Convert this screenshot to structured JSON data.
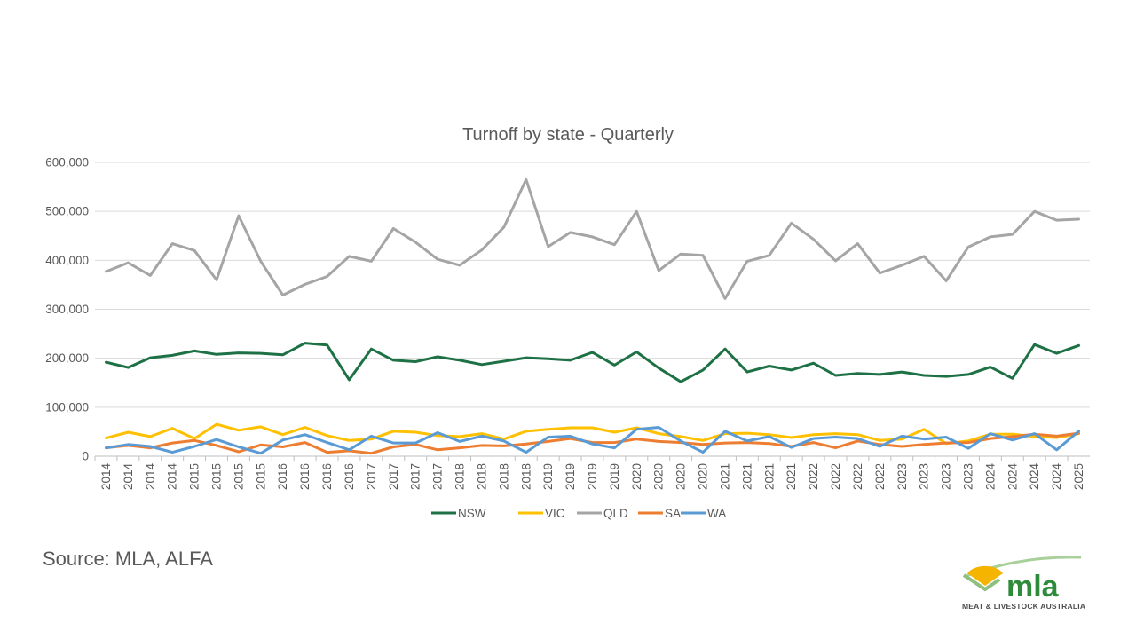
{
  "source_text": "Source: MLA, ALFA",
  "logo": {
    "wordmark": "mla",
    "tagline": "MEAT & LIVESTOCK AUSTRALIA"
  },
  "colors": {
    "NSW": "#1e7145",
    "VIC": "#ffc000",
    "QLD": "#a5a5a5",
    "SA": "#ed7d31",
    "WA": "#5b9bd5",
    "grid": "#d9d9d9",
    "text": "#595959",
    "logo_green": "#2e8b3a",
    "logo_gold": "#f4b400"
  },
  "chart_data": {
    "type": "line",
    "title": "Turnoff by state - Quarterly",
    "xlabel": "",
    "ylabel": "",
    "ylim": [
      0,
      600000
    ],
    "yticks": [
      0,
      100000,
      200000,
      300000,
      400000,
      500000,
      600000
    ],
    "ytick_labels": [
      "0",
      "100,000",
      "200,000",
      "300,000",
      "400,000",
      "500,000",
      "600,000"
    ],
    "grid": true,
    "legend_position": "bottom",
    "categories": [
      "2014",
      "2014",
      "2014",
      "2014",
      "2015",
      "2015",
      "2015",
      "2015",
      "2016",
      "2016",
      "2016",
      "2016",
      "2017",
      "2017",
      "2017",
      "2017",
      "2018",
      "2018",
      "2018",
      "2018",
      "2019",
      "2019",
      "2019",
      "2019",
      "2020",
      "2020",
      "2020",
      "2020",
      "2021",
      "2021",
      "2021",
      "2021",
      "2022",
      "2022",
      "2022",
      "2022",
      "2023",
      "2023",
      "2023",
      "2023",
      "2024",
      "2024",
      "2024",
      "2024",
      "2025"
    ],
    "series": [
      {
        "name": "NSW",
        "values": [
          192000,
          181000,
          201000,
          206000,
          215000,
          208000,
          211000,
          210000,
          207000,
          231000,
          227000,
          156000,
          219000,
          196000,
          193000,
          203000,
          196000,
          187000,
          194000,
          201000,
          199000,
          196000,
          212000,
          186000,
          213000,
          180000,
          152000,
          176000,
          219000,
          172000,
          184000,
          176000,
          190000,
          165000,
          169000,
          167000,
          172000,
          165000,
          163000,
          167000,
          182000,
          159000,
          228000,
          210000,
          226000
        ]
      },
      {
        "name": "VIC",
        "values": [
          37000,
          49000,
          40000,
          57000,
          36000,
          65000,
          53000,
          60000,
          44000,
          59000,
          42000,
          32000,
          35000,
          51000,
          49000,
          42000,
          40000,
          46000,
          35000,
          51000,
          55000,
          58000,
          58000,
          49000,
          58000,
          46000,
          40000,
          32000,
          46000,
          47000,
          44000,
          38000,
          44000,
          46000,
          44000,
          32000,
          35000,
          55000,
          26000,
          31000,
          45000,
          45000,
          40000,
          38000,
          46000
        ]
      },
      {
        "name": "QLD",
        "values": [
          377000,
          395000,
          369000,
          434000,
          420000,
          360000,
          491000,
          398000,
          329000,
          351000,
          367000,
          408000,
          398000,
          465000,
          437000,
          402000,
          390000,
          421000,
          468000,
          565000,
          428000,
          457000,
          448000,
          432000,
          500000,
          379000,
          413000,
          410000,
          322000,
          398000,
          410000,
          476000,
          443000,
          399000,
          434000,
          374000,
          390000,
          408000,
          358000,
          427000,
          448000,
          453000,
          500000,
          482000,
          484000
        ]
      },
      {
        "name": "SA",
        "values": [
          17000,
          22000,
          17000,
          27000,
          32000,
          22000,
          9000,
          23000,
          19000,
          28000,
          8000,
          11000,
          6000,
          19000,
          24000,
          13000,
          17000,
          22000,
          21000,
          25000,
          30000,
          36000,
          28000,
          28000,
          35000,
          30000,
          28000,
          24000,
          27000,
          28000,
          26000,
          20000,
          28000,
          17000,
          31000,
          24000,
          20000,
          24000,
          27000,
          28000,
          36000,
          40000,
          45000,
          41000,
          47000
        ]
      },
      {
        "name": "WA",
        "values": [
          17000,
          24000,
          20000,
          8000,
          20000,
          34000,
          19000,
          6000,
          33000,
          44000,
          28000,
          13000,
          41000,
          27000,
          27000,
          48000,
          30000,
          41000,
          31000,
          8000,
          39000,
          41000,
          25000,
          17000,
          55000,
          59000,
          31000,
          8000,
          51000,
          31000,
          40000,
          18000,
          36000,
          39000,
          36000,
          20000,
          41000,
          35000,
          39000,
          16000,
          46000,
          33000,
          46000,
          13000,
          51000
        ]
      }
    ]
  }
}
